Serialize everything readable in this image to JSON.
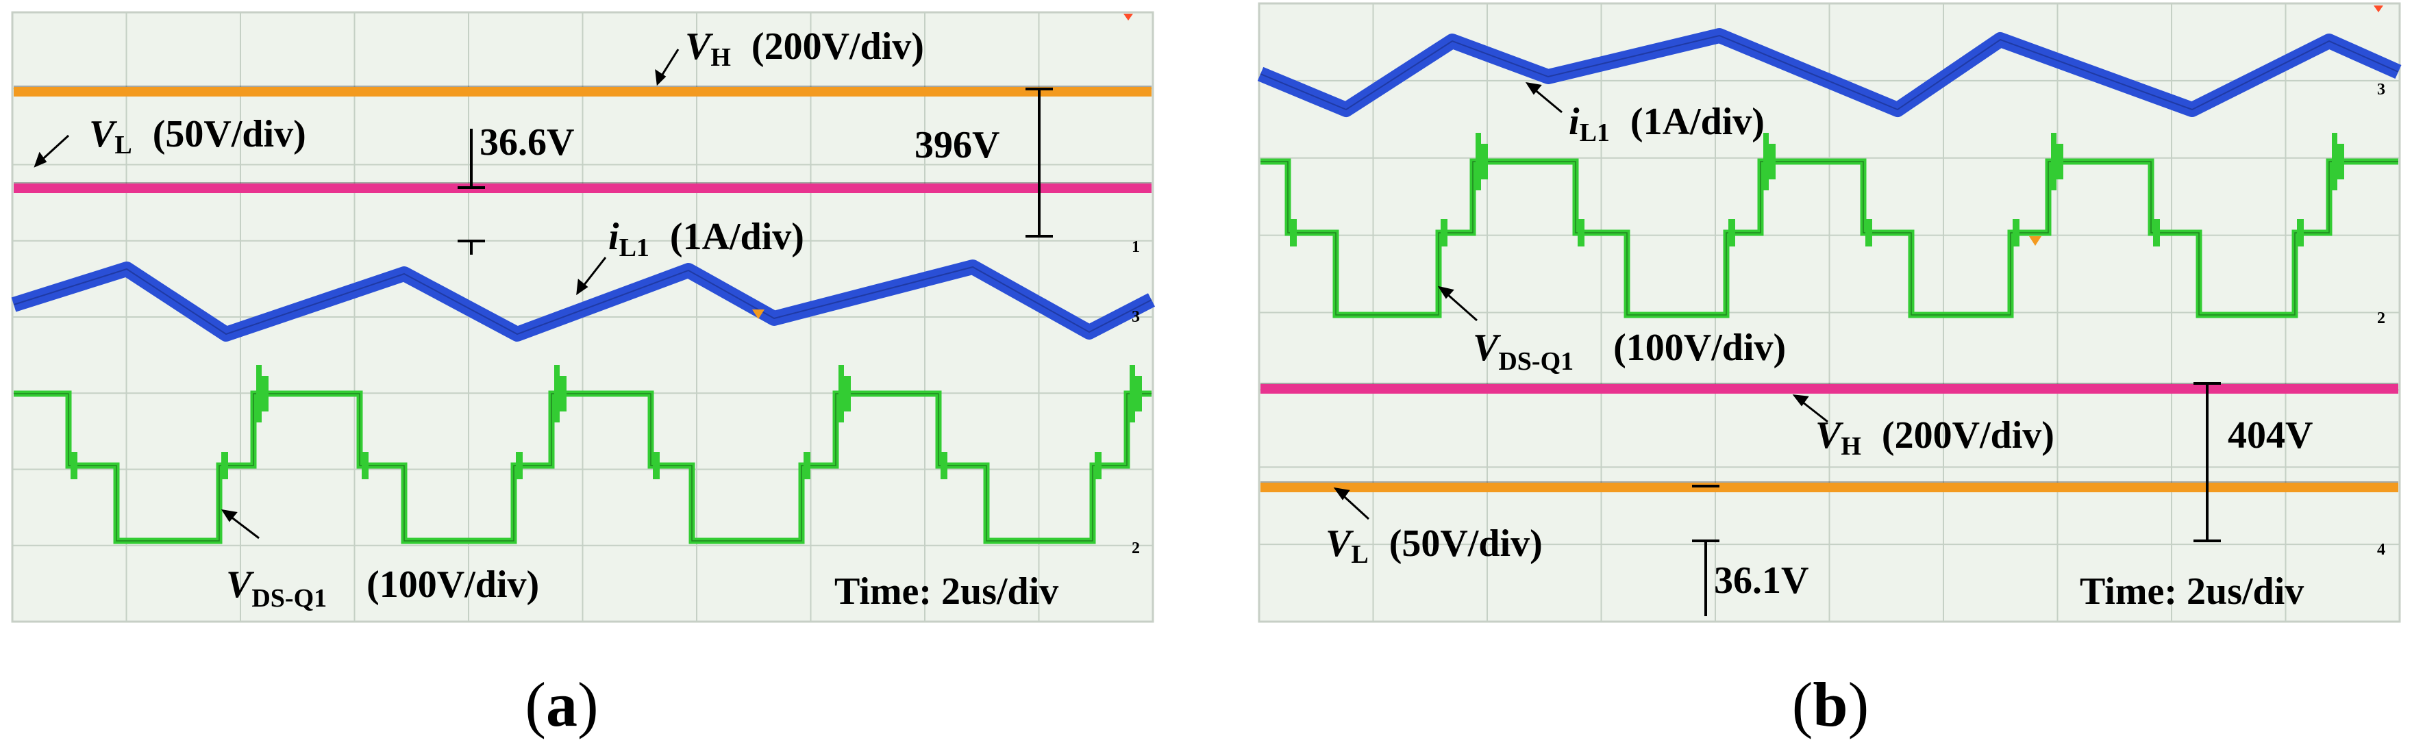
{
  "figure": {
    "panels": [
      {
        "caption_letter": "a",
        "time_label": "Time: 2us/div",
        "channel_markers": [
          "1",
          "3",
          "2"
        ],
        "traces": {
          "vh": {
            "symbol": "V",
            "subscript": "H",
            "scale": "(200V/div)",
            "color": "#f39a1f"
          },
          "vl": {
            "symbol": "V",
            "subscript": "L",
            "scale": "(50V/div)",
            "color": "#e8338f"
          },
          "il1": {
            "symbol": "i",
            "subscript": "L1",
            "scale": "(1A/div)",
            "color": "#2a4fd6"
          },
          "vds": {
            "symbol": "V",
            "subscript": "DS-Q1",
            "scale": "(100V/div)",
            "color": "#33cc33"
          }
        },
        "measurements": {
          "vl_value": "36.6V",
          "vh_value": "396V"
        }
      },
      {
        "caption_letter": "b",
        "time_label": "Time: 2us/div",
        "channel_markers": [
          "3",
          "2",
          "4"
        ],
        "traces": {
          "vh": {
            "symbol": "V",
            "subscript": "H",
            "scale": "(200V/div)",
            "color": "#e8338f"
          },
          "vl": {
            "symbol": "V",
            "subscript": "L",
            "scale": "(50V/div)",
            "color": "#f39a1f"
          },
          "il1": {
            "symbol": "i",
            "subscript": "L1",
            "scale": "(1A/div)",
            "color": "#2a4fd6"
          },
          "vds": {
            "symbol": "V",
            "subscript": "DS-Q1",
            "scale": "(100V/div)",
            "color": "#33cc33"
          }
        },
        "measurements": {
          "vh_value": "404V",
          "vl_value": "36.1V"
        }
      }
    ]
  },
  "chart_data": [
    {
      "type": "line",
      "title": "",
      "xlabel": "Time: 2us/div",
      "grid": true,
      "series": [
        {
          "name": "VH (200V/div)",
          "values": [
            396
          ]
        },
        {
          "name": "VL (50V/div)",
          "values": [
            36.6
          ]
        },
        {
          "name": "iL1 (1A/div)",
          "waveform": "triangular",
          "x_div": [
            0,
            0.9,
            1.7,
            2.7,
            3.5,
            4.6,
            5.3,
            6.4,
            7.2,
            8.0
          ],
          "y_div": [
            0,
            0.4,
            -0.4,
            0.4,
            -0.3,
            0.4,
            -0.3,
            0.4,
            -0.3,
            0.0
          ]
        },
        {
          "name": "VDS-Q1 (100V/div)",
          "waveform": "three-level square",
          "levels": [
            "high",
            "mid",
            "low"
          ]
        }
      ]
    },
    {
      "type": "line",
      "title": "",
      "xlabel": "Time: 2us/div",
      "grid": true,
      "series": [
        {
          "name": "iL1 (1A/div)",
          "waveform": "triangular",
          "x_div": [
            0,
            0.8,
            1.7,
            2.7,
            3.7,
            4.7,
            5.7,
            6.7,
            7.5,
            8.0
          ],
          "y_div": [
            0,
            -0.4,
            0.4,
            -0.3,
            0.4,
            -0.3,
            0.4,
            -0.3,
            0.1,
            0.0
          ]
        },
        {
          "name": "VDS-Q1 (100V/div)",
          "waveform": "three-level square",
          "levels": [
            "high",
            "mid",
            "low"
          ]
        },
        {
          "name": "VH (200V/div)",
          "values": [
            404
          ]
        },
        {
          "name": "VL (50V/div)",
          "values": [
            36.1
          ]
        }
      ]
    }
  ]
}
